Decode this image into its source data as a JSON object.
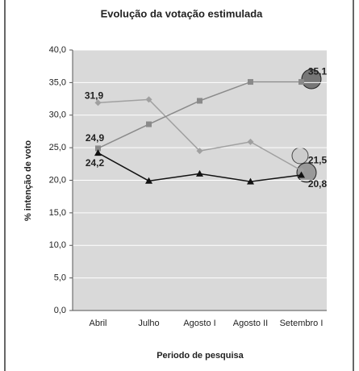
{
  "chart_data": {
    "type": "line",
    "title": "Evolução da votação estimulada",
    "y_label": "% intenção de voto",
    "x_label": "Periodo de pesquisa",
    "categories": [
      "Abril",
      "Julho",
      "Agosto I",
      "Agosto II",
      "Setembro I"
    ],
    "series": [
      {
        "color": "#a0a0a0",
        "marker": "diamond",
        "values": [
          31.9,
          32.4,
          24.5,
          25.9,
          21.5
        ],
        "value_labels": [
          "31,9",
          null,
          null,
          null,
          "21,5"
        ]
      },
      {
        "color": "#8a8a8a",
        "marker": "square",
        "values": [
          24.9,
          28.6,
          32.2,
          35.1,
          35.1
        ],
        "value_labels": [
          "24,9",
          null,
          null,
          null,
          "35,1"
        ]
      },
      {
        "color": "#111111",
        "marker": "triangle",
        "values": [
          24.2,
          19.9,
          21.0,
          19.8,
          20.8
        ],
        "value_labels": [
          "24,2",
          null,
          null,
          null,
          "20,8"
        ]
      }
    ],
    "ylim": [
      0,
      40
    ],
    "yticks": [
      {
        "value": 0,
        "label": "0,0"
      },
      {
        "value": 5,
        "label": "5,0"
      },
      {
        "value": 10,
        "label": "10,0"
      },
      {
        "value": 15,
        "label": "15,0"
      },
      {
        "value": 20,
        "label": "20,0"
      },
      {
        "value": 25,
        "label": "25,0"
      },
      {
        "value": 30,
        "label": "30,0"
      },
      {
        "value": 35,
        "label": "35,0"
      },
      {
        "value": 40,
        "label": "40,0"
      }
    ],
    "grid": true
  }
}
